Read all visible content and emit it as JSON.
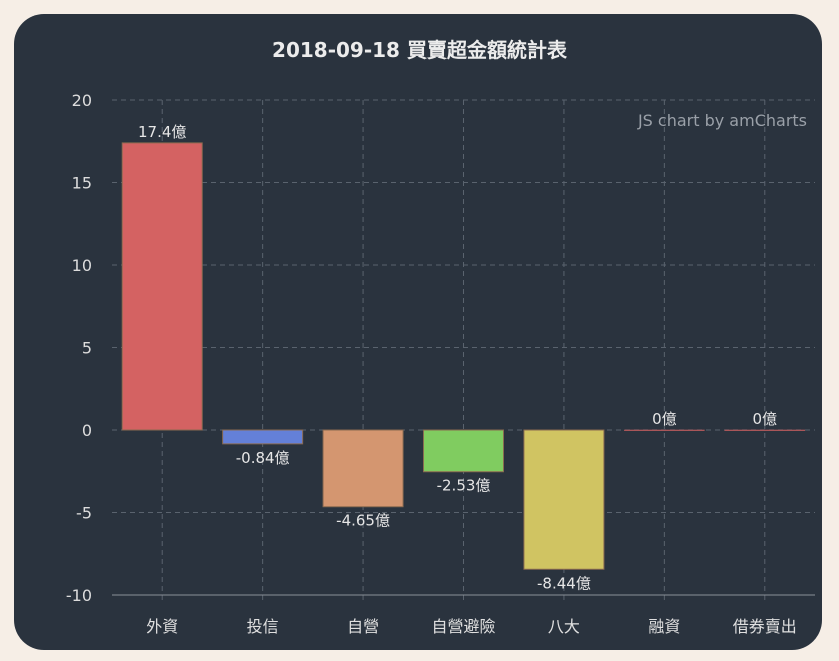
{
  "chart_data": {
    "type": "bar",
    "title": "2018-09-18 買賣超金額統計表",
    "credit": "JS chart by amCharts",
    "categories": [
      "外資",
      "投信",
      "自營",
      "自營避險",
      "八大",
      "融資",
      "借券賣出"
    ],
    "values": [
      17.4,
      -0.84,
      -4.65,
      -2.53,
      -8.44,
      0,
      0
    ],
    "data_labels": [
      "17.4億",
      "-0.84億",
      "-4.65億",
      "-2.53億",
      "-8.44億",
      "0億",
      "0億"
    ],
    "colors": [
      "#d46262",
      "#6480d8",
      "#d49670",
      "#80cc60",
      "#d0c462",
      "#d46262",
      "#d46262"
    ],
    "ylim": [
      -10,
      20
    ],
    "yticks": [
      "20",
      "15",
      "10",
      "5",
      "0",
      "-5",
      "-10"
    ],
    "grid": true,
    "xlabel": "",
    "ylabel": ""
  }
}
